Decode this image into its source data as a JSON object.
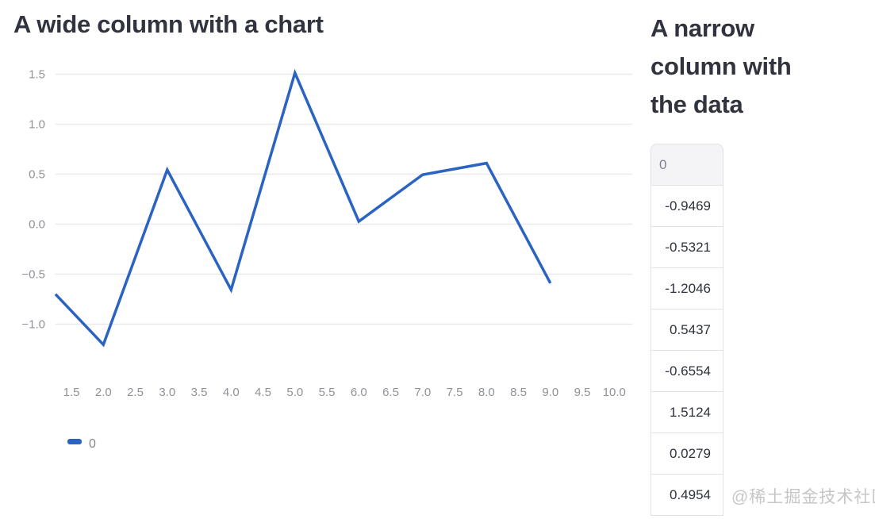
{
  "wide_column": {
    "heading": "A wide column with a chart"
  },
  "narrow_column": {
    "heading": "A narrow column with the data"
  },
  "chart_data": {
    "type": "line",
    "title": "",
    "xlabel": "",
    "ylabel": "",
    "grid": "horizontal gridlines only, no axis lines",
    "x_domain": [
      1.25,
      10.28
    ],
    "x_tick_values": [
      1.5,
      2.0,
      2.5,
      3.0,
      3.5,
      4.0,
      4.5,
      5.0,
      5.5,
      6.0,
      6.5,
      7.0,
      7.5,
      8.0,
      8.5,
      9.0,
      9.5,
      10.0
    ],
    "x_tick_labels": [
      "1.5",
      "2.0",
      "2.5",
      "3.0",
      "3.5",
      "4.0",
      "4.5",
      "5.0",
      "5.5",
      "6.0",
      "6.5",
      "7.0",
      "7.5",
      "8.0",
      "8.5",
      "9.0",
      "9.5",
      "10.0"
    ],
    "y_tick_values": [
      1.5,
      1.0,
      0.5,
      0.0,
      -0.5,
      -1.0
    ],
    "y_tick_labels": [
      "1.5",
      "1.0",
      "0.5",
      "0.0",
      "−0.5",
      "−1.0"
    ],
    "series": [
      {
        "name": "0",
        "x": [
          2,
          3,
          4,
          5,
          6,
          7,
          8,
          9
        ],
        "y": [
          -1.2046,
          0.5437,
          -0.6554,
          1.5124,
          0.0279,
          0.4954,
          0.61,
          -0.59
        ],
        "clipped_entry_point": {
          "x": 1.25,
          "y": -0.7
        },
        "note": "line enters clipped from the left plot edge; values at x=8 and x=9 estimated from pixels"
      }
    ],
    "legend": {
      "position": "bottom-left",
      "entries": [
        {
          "label": "0",
          "color": "#2b63c3"
        }
      ]
    },
    "colors": {
      "line": "#2b63c3",
      "grid": "#e9e9eb",
      "tick_label": "#8f9298"
    }
  },
  "table": {
    "header": "0",
    "rows": [
      "-0.9469",
      "-0.5321",
      "-1.2046",
      "0.5437",
      "-0.6554",
      "1.5124",
      "0.0279",
      "0.4954"
    ]
  },
  "watermark": {
    "text": "@稀土掘金技术社区"
  }
}
